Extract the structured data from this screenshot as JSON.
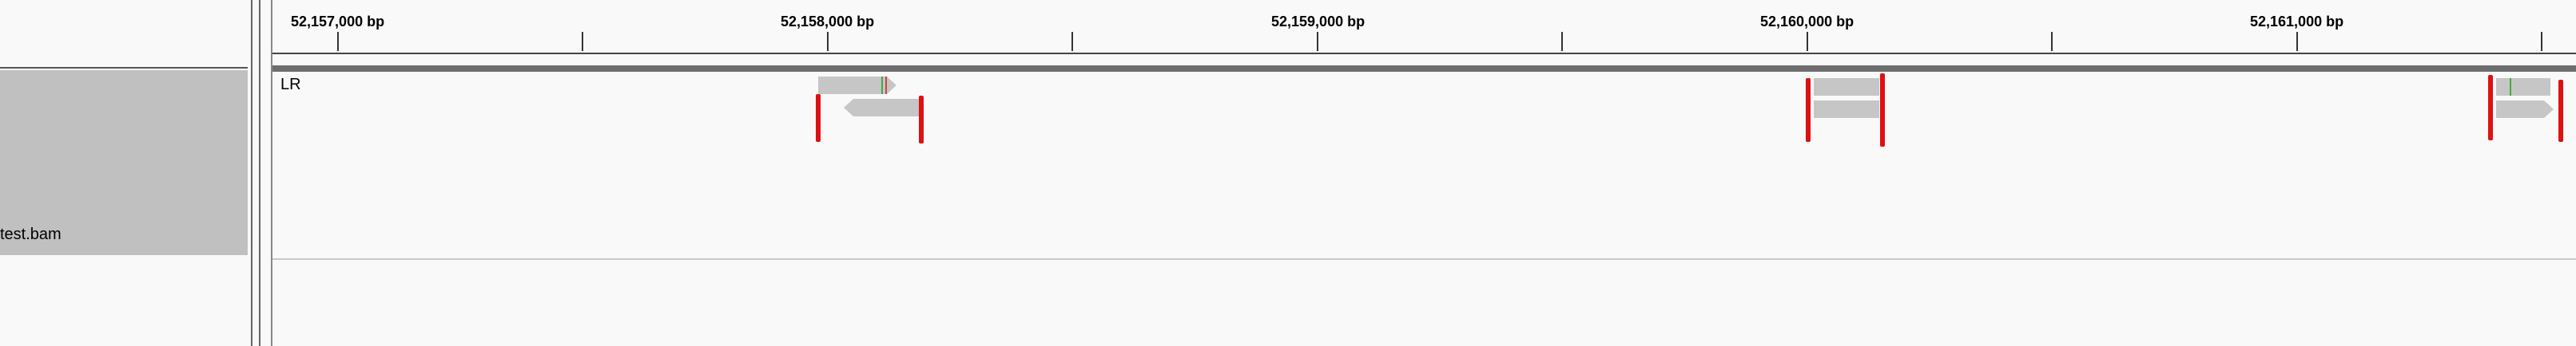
{
  "ruler": {
    "tick_labels": [
      "52,157,000 bp",
      "52,158,000 bp",
      "52,159,000 bp",
      "52,160,000 bp",
      "52,161,000 bp"
    ]
  },
  "track": {
    "name": "test.bam",
    "label": "LR"
  },
  "colors": {
    "read": "#c6c6c6",
    "soft_clip": "#dd1111",
    "mismatch": "#44aa44",
    "track_name_bg": "#c0c0c0"
  }
}
